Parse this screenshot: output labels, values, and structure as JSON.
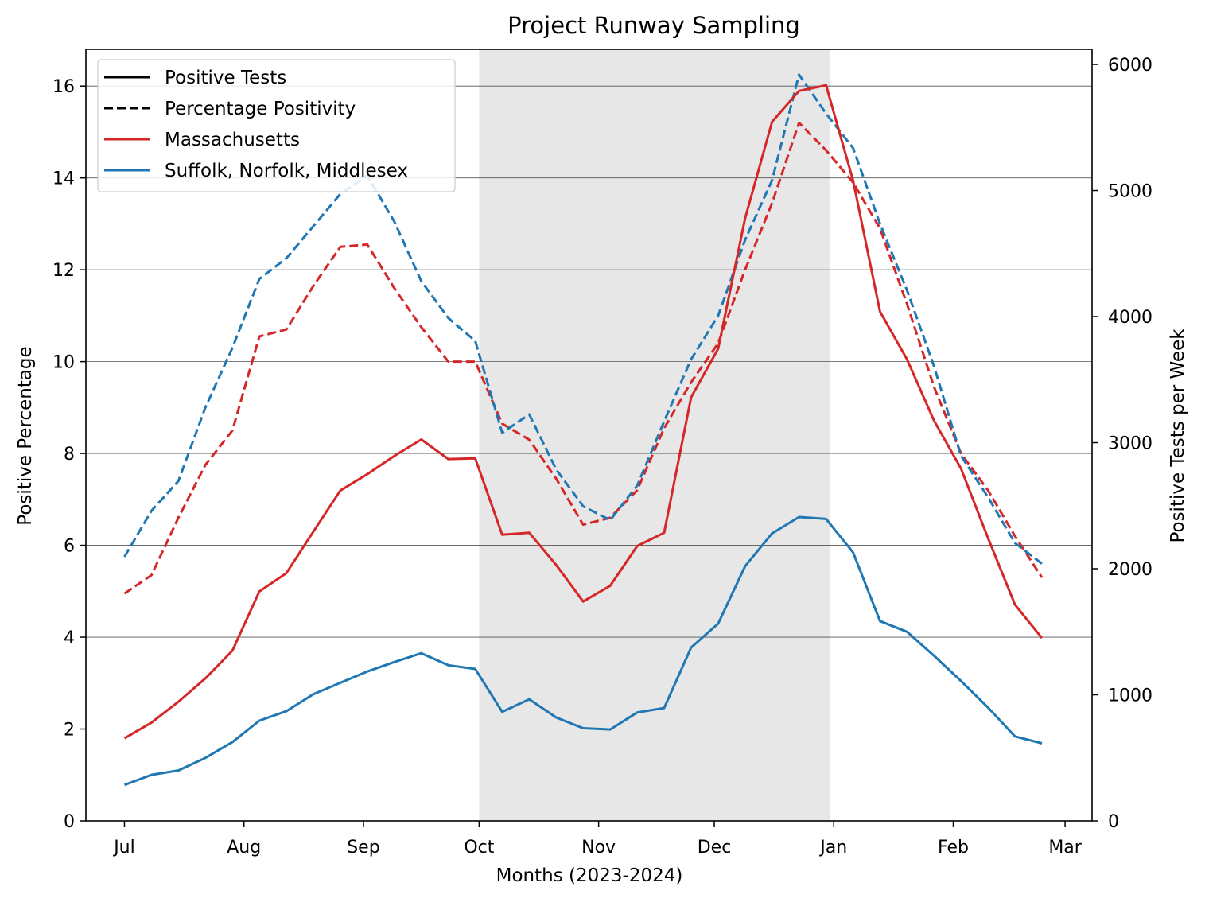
{
  "chart_data": {
    "type": "line",
    "title": "Project Runway Sampling",
    "xlabel": "Months (2023-2024)",
    "ylabel_left": "Positive Percentage",
    "ylabel_right": "Positive Tests per Week",
    "x_ticks": [
      {
        "label": "Jul",
        "date": "2023-07-01"
      },
      {
        "label": "Aug",
        "date": "2023-08-01"
      },
      {
        "label": "Sep",
        "date": "2023-09-01"
      },
      {
        "label": "Oct",
        "date": "2023-10-01"
      },
      {
        "label": "Nov",
        "date": "2023-11-01"
      },
      {
        "label": "Dec",
        "date": "2023-12-01"
      },
      {
        "label": "Jan",
        "date": "2024-01-01"
      },
      {
        "label": "Feb",
        "date": "2024-02-01"
      },
      {
        "label": "Mar",
        "date": "2024-03-01"
      }
    ],
    "xlim": [
      "2023-06-21",
      "2024-03-08"
    ],
    "ylim_left": [
      0,
      16.8
    ],
    "ylim_right": [
      0,
      6120
    ],
    "y_ticks_left": [
      0,
      2,
      4,
      6,
      8,
      10,
      12,
      14,
      16
    ],
    "y_ticks_right": [
      0,
      1000,
      2000,
      3000,
      4000,
      5000,
      6000
    ],
    "shaded_region": {
      "start": "2023-10-01",
      "end": "2023-12-31"
    },
    "grid": "horizontal",
    "legend": {
      "placement": "top-left",
      "entries": [
        {
          "label": "Positive Tests",
          "color": "#000000",
          "style": "solid"
        },
        {
          "label": "Percentage Positivity",
          "color": "#000000",
          "style": "dashed"
        },
        {
          "label": "Massachusetts",
          "color": "#d62728",
          "style": "solid"
        },
        {
          "label": "Suffolk, Norfolk, Middlesex",
          "color": "#1f77b4",
          "style": "solid"
        }
      ]
    },
    "dates": [
      "2023-07-01",
      "2023-07-08",
      "2023-07-15",
      "2023-07-22",
      "2023-07-29",
      "2023-08-05",
      "2023-08-12",
      "2023-08-19",
      "2023-08-26",
      "2023-09-02",
      "2023-09-09",
      "2023-09-16",
      "2023-09-23",
      "2023-09-30",
      "2023-10-07",
      "2023-10-14",
      "2023-10-21",
      "2023-10-28",
      "2023-11-04",
      "2023-11-11",
      "2023-11-18",
      "2023-11-25",
      "2023-12-02",
      "2023-12-09",
      "2023-12-16",
      "2023-12-23",
      "2023-12-30",
      "2024-01-06",
      "2024-01-13",
      "2024-01-20",
      "2024-01-27",
      "2024-02-03",
      "2024-02-10",
      "2024-02-17",
      "2024-02-24"
    ],
    "series": [
      {
        "name": "Massachusetts",
        "legend_index": 2,
        "metric": "Percentage Positivity",
        "axis": "left",
        "color": "#d62728",
        "style": "dashed",
        "values": [
          4.95,
          5.35,
          6.6,
          7.75,
          8.5,
          10.55,
          10.7,
          11.65,
          12.5,
          12.55,
          11.6,
          10.75,
          10.0,
          10.0,
          8.65,
          8.3,
          7.45,
          6.45,
          6.6,
          7.2,
          8.55,
          9.55,
          10.4,
          12.0,
          13.45,
          15.2,
          14.6,
          13.9,
          12.9,
          11.25,
          9.45,
          8.0,
          7.2,
          6.2,
          5.3
        ]
      },
      {
        "name": "Suffolk, Norfolk, Middlesex",
        "legend_index": 3,
        "metric": "Percentage Positivity",
        "axis": "left",
        "color": "#1f77b4",
        "style": "dashed",
        "values": [
          5.75,
          6.75,
          7.4,
          9.0,
          10.3,
          11.8,
          12.25,
          12.95,
          13.65,
          14.05,
          13.05,
          11.75,
          10.95,
          10.45,
          8.45,
          8.85,
          7.65,
          6.85,
          6.55,
          7.3,
          8.7,
          10.05,
          11.0,
          12.65,
          13.95,
          16.25,
          15.4,
          14.65,
          13.0,
          11.55,
          9.9,
          7.95,
          7.05,
          6.05,
          5.6
        ]
      },
      {
        "name": "Massachusetts",
        "legend_index": 2,
        "metric": "Positive Tests",
        "axis": "right",
        "color": "#d62728",
        "style": "solid",
        "values": [
          655,
          780,
          945,
          1130,
          1350,
          1820,
          1965,
          2295,
          2620,
          2750,
          2895,
          3025,
          2870,
          2875,
          2270,
          2285,
          2030,
          1740,
          1865,
          2180,
          2285,
          3360,
          3745,
          4780,
          5545,
          5790,
          5835,
          5080,
          4040,
          3660,
          3175,
          2795,
          2245,
          1715,
          1450
        ]
      },
      {
        "name": "Suffolk, Norfolk, Middlesex",
        "legend_index": 3,
        "metric": "Positive Tests",
        "axis": "right",
        "color": "#1f77b4",
        "style": "solid",
        "values": [
          285,
          365,
          400,
          500,
          625,
          795,
          870,
          1005,
          1095,
          1185,
          1260,
          1330,
          1235,
          1205,
          865,
          965,
          820,
          735,
          725,
          860,
          895,
          1375,
          1565,
          2020,
          2280,
          2410,
          2395,
          2130,
          1585,
          1500,
          1310,
          1110,
          900,
          670,
          615
        ]
      }
    ]
  }
}
